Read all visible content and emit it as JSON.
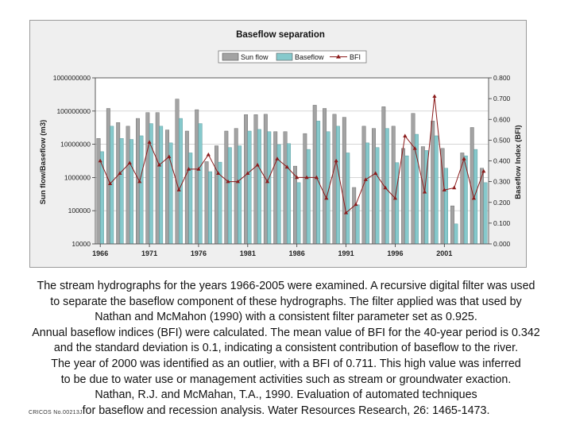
{
  "chart_data": {
    "type": "bar",
    "title": "Baseflow separation",
    "ylabel_left": "Sun flow/Baseflow (m3)",
    "ylabel_right": "Baseflow Index (BFI)",
    "y_left_scale": "log",
    "y_left_ticks": [
      "10000",
      "100000",
      "1000000",
      "10000000",
      "100000000",
      "1000000000"
    ],
    "ylim_left": [
      10000,
      1000000000
    ],
    "y_right_ticks": [
      "0.000",
      "0.100",
      "0.200",
      "0.300",
      "0.400",
      "0.500",
      "0.600",
      "0.700",
      "0.800"
    ],
    "ylim_right": [
      0,
      0.8
    ],
    "x_tick_labels": [
      "1966",
      "1971",
      "1976",
      "1981",
      "1986",
      "1991",
      "1996",
      "2001"
    ],
    "years": [
      1966,
      1967,
      1968,
      1969,
      1970,
      1971,
      1972,
      1973,
      1974,
      1975,
      1976,
      1977,
      1978,
      1979,
      1980,
      1981,
      1982,
      1983,
      1984,
      1985,
      1986,
      1987,
      1988,
      1989,
      1990,
      1991,
      1992,
      1993,
      1994,
      1995,
      1996,
      1997,
      1998,
      1999,
      2000,
      2001,
      2002,
      2003,
      2004,
      2005
    ],
    "legend": [
      "Sun flow",
      "Baseflow",
      "BFI"
    ],
    "legend_position": "top",
    "series": [
      {
        "name": "Sun flow",
        "color": "#a3a3a3",
        "values": [
          15000000,
          120000000,
          45000000,
          35000000,
          60000000,
          90000000,
          90000000,
          27000000,
          230000000,
          25000000,
          110000000,
          3000000,
          9000000,
          25000000,
          30000000,
          78000000,
          78000000,
          80000000,
          24000000,
          24000000,
          2200000,
          21000000,
          150000000,
          120000000,
          80000000,
          65000000,
          500000,
          35000000,
          30000000,
          135000000,
          35000000,
          7500000,
          85000000,
          8500000,
          50000000,
          7500000,
          140000,
          5500000,
          32000000,
          1900000
        ]
      },
      {
        "name": "Baseflow",
        "color": "#86c9cc",
        "values": [
          6000000,
          35000000,
          15000000,
          14000000,
          18000000,
          42000000,
          35000000,
          11000000,
          60000000,
          5500000,
          42000000,
          1500000,
          2900000,
          8000000,
          9000000,
          25000000,
          28000000,
          24000000,
          9800000,
          10500000,
          700000,
          7000000,
          50000000,
          24000000,
          35000000,
          5500000,
          150000,
          11000000,
          8000000,
          30000000,
          2800000,
          4500000,
          20000000,
          6500000,
          18000000,
          1900000,
          40000,
          4500000,
          7000000,
          700000
        ]
      },
      {
        "name": "BFI",
        "color": "#8b1a1a",
        "values": [
          0.4,
          0.29,
          0.34,
          0.39,
          0.3,
          0.49,
          0.38,
          0.42,
          0.26,
          0.36,
          0.36,
          0.43,
          0.34,
          0.3,
          0.3,
          0.34,
          0.38,
          0.3,
          0.41,
          0.37,
          0.32,
          0.32,
          0.32,
          0.22,
          0.4,
          0.15,
          0.19,
          0.31,
          0.34,
          0.27,
          0.22,
          0.52,
          0.46,
          0.25,
          0.711,
          0.26,
          0.27,
          0.41,
          0.22,
          0.35
        ]
      }
    ]
  },
  "text_lines": [
    "The stream hydrographs for the years 1966-2005 were examined.   A recursive digital filter was used",
    "to separate the baseflow component of these hydrographs.   The filter applied was that used by",
    "Nathan and McMahon (1990) with a consistent filter parameter set as 0.925.",
    "Annual baseflow indices (BFI) were calculated. The mean value of BFI for the 40-year period is 0.342",
    "and the standard deviation is 0.1, indicating a consistent contribution of baseflow to the river.",
    "The year of 2000 was identified as an outlier, with a BFI of 0.711.  This high value was inferred",
    "to be due to water use or management activities such as stream or groundwater exaction.",
    "Nathan, R.J. and McMahan, T.A., 1990. Evaluation of automated techniques",
    "for baseflow and recession analysis. Water Resources Research, 26: 1465-1473."
  ],
  "footer_code": "CRICOS No.00213J"
}
